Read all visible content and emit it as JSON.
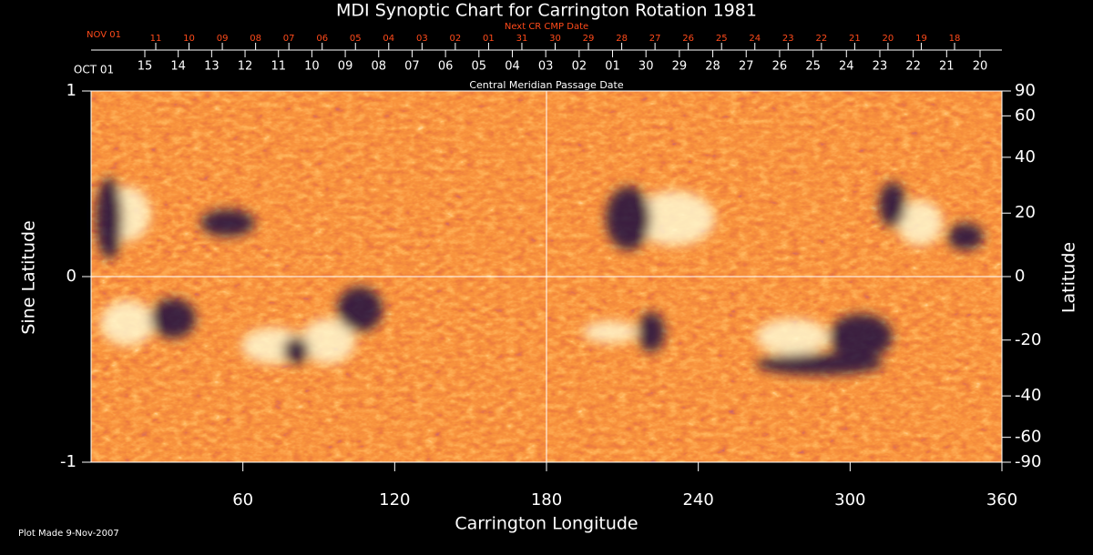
{
  "chart_data": {
    "type": "synoptic-map",
    "title": "MDI Synoptic Chart for Carrington Rotation 1981",
    "xlabel": "Carrington Longitude",
    "ylabel": "Sine Latitude",
    "y2label": "Latitude",
    "footnote": "Plot Made  9-Nov-2007",
    "xlim": [
      0,
      360
    ],
    "xticks": [
      60,
      120,
      180,
      240,
      300,
      360
    ],
    "ylim": [
      -1,
      1
    ],
    "yticks": [
      -1,
      0,
      1
    ],
    "y2lim": [
      -90,
      90
    ],
    "y2scale": "sine",
    "y2ticks": [
      90,
      60,
      40,
      20,
      0,
      -20,
      -40,
      -60,
      -90
    ],
    "cmp_axis": {
      "label": "Central Meridian Passage Date",
      "start": "OCT 01",
      "days": [
        "15",
        "14",
        "13",
        "12",
        "11",
        "10",
        "09",
        "08",
        "07",
        "06",
        "05",
        "04",
        "03",
        "02",
        "01",
        "30",
        "29",
        "28",
        "27",
        "26",
        "25",
        "24",
        "23",
        "22",
        "21",
        "20"
      ]
    },
    "next_cmp_axis": {
      "label": "Next CR CMP Date",
      "start": "NOV 01",
      "days": [
        "11",
        "10",
        "09",
        "08",
        "07",
        "06",
        "05",
        "04",
        "03",
        "02",
        "01",
        "31",
        "30",
        "29",
        "28",
        "27",
        "26",
        "25",
        "24",
        "23",
        "22",
        "21",
        "20",
        "19",
        "18"
      ]
    }
  }
}
